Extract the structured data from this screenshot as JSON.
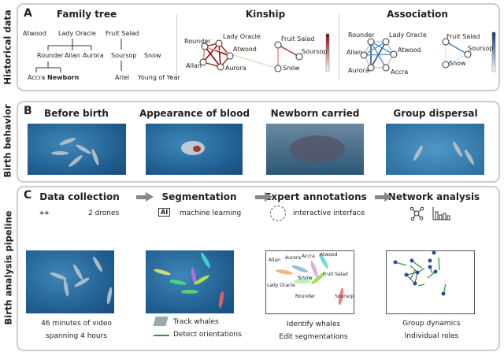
{
  "rows": {
    "a": "Historical data",
    "b": "Birth behavior",
    "c": "Birth analysis pipeline"
  },
  "panelA": {
    "letter": "A",
    "family_tree": {
      "title": "Family tree",
      "names": [
        "Atwood",
        "Lady Oracle",
        "Fruit Salad",
        "Rounder",
        "Allan",
        "Aurora",
        "Soursop",
        "Snow",
        "Accra",
        "Newborn",
        "Ariel",
        "Young of Year"
      ]
    },
    "kinship": {
      "title": "Kinship",
      "names": [
        "Rounder",
        "Lady Oracle",
        "Atwood",
        "Allan",
        "Aurora",
        "Fruit Salad",
        "Soursop",
        "Snow"
      ],
      "color": "#8b0000"
    },
    "association": {
      "title": "Association",
      "names": [
        "Rounder",
        "Lady Oracle",
        "Allan",
        "Atwood",
        "Aurora",
        "Accra",
        "Fruit Salad",
        "Soursop",
        "Snow"
      ],
      "color": "#08306b"
    }
  },
  "panelB": {
    "letter": "B",
    "stages": [
      "Before birth",
      "Appearance of blood",
      "Newborn carried",
      "Group dispersal"
    ]
  },
  "panelC": {
    "letter": "C",
    "steps": [
      {
        "title": "Data collection",
        "tool": "2 drones",
        "caption": [
          "46 minutes of video",
          "spanning 4 hours"
        ]
      },
      {
        "title": "Segmentation",
        "tool": "machine learning",
        "chip": "AI",
        "caption": [
          "Track whales",
          "Detect orientations"
        ]
      },
      {
        "title": "Expert annotations",
        "tool": "interactive interface",
        "caption": [
          "Identify whales",
          "Edit segmentations"
        ],
        "labels": [
          "Allan",
          "Aurora",
          "Accra",
          "Atwood",
          "Snow",
          "Fruit Salad",
          "Lady Oracle",
          "Rounder",
          "Soursop"
        ]
      },
      {
        "title": "Network analysis",
        "tool": "",
        "caption": [
          "Group dynamics",
          "Individual roles"
        ]
      }
    ]
  }
}
